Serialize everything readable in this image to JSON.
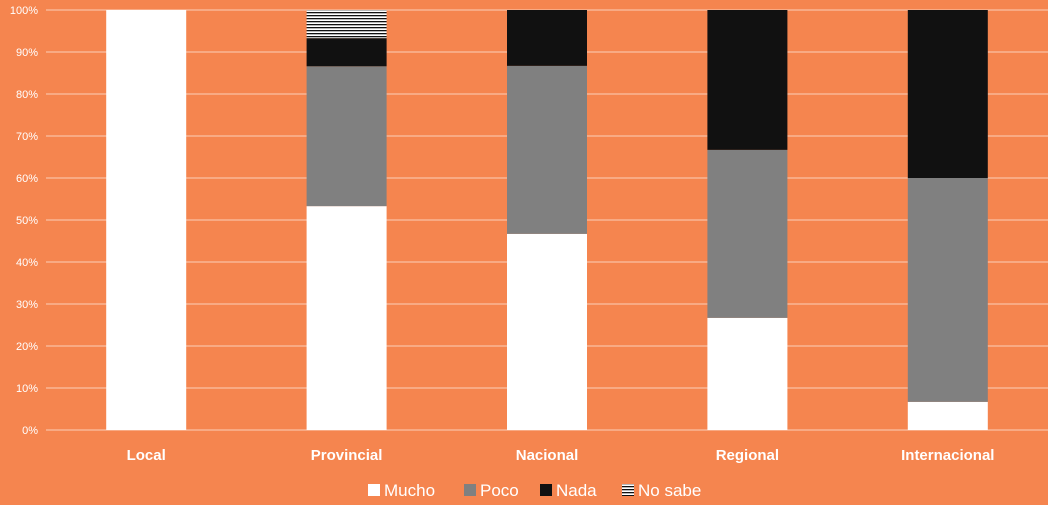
{
  "chart_data": {
    "type": "bar",
    "stacked": true,
    "percent": true,
    "categories": [
      "Local",
      "Provincial",
      "Nacional",
      "Regional",
      "Internacional"
    ],
    "series": [
      {
        "name": "Mucho",
        "values": [
          100,
          53.3,
          46.7,
          26.7,
          6.7
        ]
      },
      {
        "name": "Poco",
        "values": [
          0,
          33.3,
          40.0,
          40.0,
          53.3
        ]
      },
      {
        "name": "Nada",
        "values": [
          0,
          6.7,
          13.3,
          33.3,
          40.0
        ]
      },
      {
        "name": "No sabe",
        "values": [
          0,
          6.7,
          0,
          0,
          0
        ]
      }
    ],
    "ylim": [
      0,
      100
    ],
    "yticks": [
      "0%",
      "10%",
      "20%",
      "30%",
      "40%",
      "50%",
      "60%",
      "70%",
      "80%",
      "90%",
      "100%"
    ],
    "grid": true,
    "legend_position": "bottom",
    "colors": {
      "background": "#f5854f",
      "grid": "#ffffff",
      "Mucho": "#ffffff",
      "Poco": "#808080",
      "Nada": "#111111",
      "No sabe": "striped"
    }
  }
}
